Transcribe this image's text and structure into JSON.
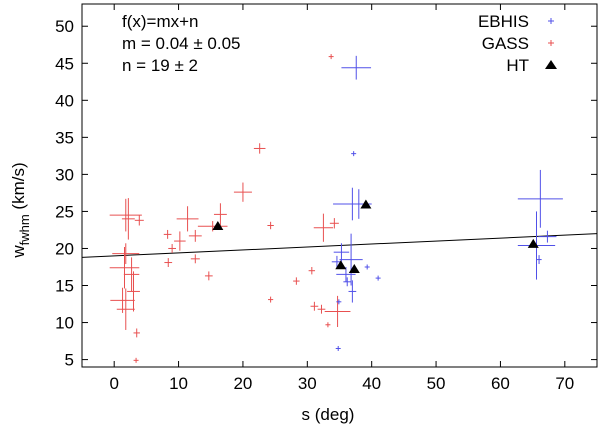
{
  "chart_data": {
    "type": "scatter",
    "xlabel": "s (deg)",
    "ylabel": {
      "main": "w",
      "sub": "fwhm",
      "unit": " (km/s)"
    },
    "xlim": [
      -5,
      75
    ],
    "ylim": [
      4,
      53
    ],
    "xticks": [
      0,
      10,
      20,
      30,
      40,
      50,
      60,
      70
    ],
    "yticks": [
      5,
      10,
      15,
      20,
      25,
      30,
      35,
      40,
      45,
      50
    ],
    "annotations": [
      "f(x)=mx+n",
      "m = 0.04 ± 0.05",
      "n = 19 ± 2"
    ],
    "fit_line": {
      "m": 0.04,
      "n": 19
    },
    "legend": [
      {
        "label": "EBHIS",
        "series": "EBHIS"
      },
      {
        "label": "GASS",
        "series": "GASS"
      },
      {
        "label": "HT",
        "series": "HT"
      }
    ],
    "colors": {
      "EBHIS": "#5050e8",
      "GASS": "#e85050",
      "HT": "#000000",
      "fit": "#000000",
      "frame": "#000000"
    },
    "series": [
      {
        "name": "EBHIS",
        "marker": "cross",
        "points": [
          {
            "x": 37.6,
            "y": 44.4,
            "xerr": 2.3,
            "yerr": 1.6
          },
          {
            "x": 37.2,
            "y": 32.8,
            "xerr": 0.3,
            "yerr": 0.3
          },
          {
            "x": 37.0,
            "y": 26.0,
            "xerr": 3.0,
            "yerr": 2.2
          },
          {
            "x": 38.0,
            "y": 26.0,
            "xerr": 1.5,
            "yerr": 2.0
          },
          {
            "x": 36.8,
            "y": 18.5,
            "xerr": 1.8,
            "yerr": 3.5
          },
          {
            "x": 36.0,
            "y": 16.5,
            "xerr": 1.5,
            "yerr": 1.0
          },
          {
            "x": 35.3,
            "y": 19.5,
            "xerr": 1.2,
            "yerr": 1.2
          },
          {
            "x": 34.6,
            "y": 18.2,
            "xerr": 0.8,
            "yerr": 0.8
          },
          {
            "x": 37.0,
            "y": 14.2,
            "xerr": 0.6,
            "yerr": 1.5
          },
          {
            "x": 36.2,
            "y": 15.5,
            "xerr": 0.6,
            "yerr": 0.6
          },
          {
            "x": 34.9,
            "y": 12.8,
            "xerr": 0.3,
            "yerr": 0.3
          },
          {
            "x": 39.3,
            "y": 17.5,
            "xerr": 0.3,
            "yerr": 0.3
          },
          {
            "x": 41.0,
            "y": 16.0,
            "xerr": 0.3,
            "yerr": 0.3
          },
          {
            "x": 34.8,
            "y": 6.5,
            "xerr": 0.2,
            "yerr": 0.2
          },
          {
            "x": 66.2,
            "y": 26.7,
            "xerr": 3.5,
            "yerr": 3.9
          },
          {
            "x": 65.6,
            "y": 20.4,
            "xerr": 2.9,
            "yerr": 4.6
          },
          {
            "x": 67.3,
            "y": 21.6,
            "xerr": 1.4,
            "yerr": 0.8
          },
          {
            "x": 66.0,
            "y": 18.5,
            "xerr": 0.4,
            "yerr": 0.6
          }
        ]
      },
      {
        "name": "GASS",
        "marker": "cross",
        "points": [
          {
            "x": 33.7,
            "y": 45.9,
            "xerr": 0.3,
            "yerr": 0.3
          },
          {
            "x": 22.6,
            "y": 33.5,
            "xerr": 0.9,
            "yerr": 0.7
          },
          {
            "x": 20.0,
            "y": 27.6,
            "xerr": 1.4,
            "yerr": 1.3
          },
          {
            "x": 16.5,
            "y": 24.6,
            "xerr": 1.0,
            "yerr": 1.5
          },
          {
            "x": 11.4,
            "y": 24.0,
            "xerr": 1.7,
            "yerr": 1.7
          },
          {
            "x": 1.8,
            "y": 24.5,
            "xerr": 2.5,
            "yerr": 2.2
          },
          {
            "x": 2.2,
            "y": 24.0,
            "xerr": 1.0,
            "yerr": 2.8
          },
          {
            "x": 3.9,
            "y": 23.8,
            "xerr": 0.7,
            "yerr": 0.7
          },
          {
            "x": 15.3,
            "y": 23.0,
            "xerr": 2.3,
            "yerr": 0.7
          },
          {
            "x": 24.3,
            "y": 23.1,
            "xerr": 0.5,
            "yerr": 0.5
          },
          {
            "x": 12.6,
            "y": 21.7,
            "xerr": 1.0,
            "yerr": 0.8
          },
          {
            "x": 8.3,
            "y": 21.9,
            "xerr": 0.6,
            "yerr": 0.6
          },
          {
            "x": 10.2,
            "y": 21.0,
            "xerr": 0.9,
            "yerr": 1.3
          },
          {
            "x": 9.0,
            "y": 20.0,
            "xerr": 0.6,
            "yerr": 0.6
          },
          {
            "x": 1.8,
            "y": 19.3,
            "xerr": 2.1,
            "yerr": 1.4
          },
          {
            "x": 1.6,
            "y": 17.4,
            "xerr": 2.3,
            "yerr": 2.8
          },
          {
            "x": 2.7,
            "y": 16.5,
            "xerr": 1.2,
            "yerr": 2.3
          },
          {
            "x": 3.0,
            "y": 14.2,
            "xerr": 1.0,
            "yerr": 2.7
          },
          {
            "x": 1.3,
            "y": 13.0,
            "xerr": 1.9,
            "yerr": 1.7
          },
          {
            "x": 1.8,
            "y": 11.8,
            "xerr": 1.4,
            "yerr": 2.8
          },
          {
            "x": 3.5,
            "y": 8.6,
            "xerr": 0.5,
            "yerr": 0.6
          },
          {
            "x": 3.4,
            "y": 4.9,
            "xerr": 0.3,
            "yerr": 0.3
          },
          {
            "x": 12.6,
            "y": 18.6,
            "xerr": 0.7,
            "yerr": 0.6
          },
          {
            "x": 8.4,
            "y": 18.1,
            "xerr": 0.6,
            "yerr": 0.6
          },
          {
            "x": 14.7,
            "y": 16.3,
            "xerr": 0.6,
            "yerr": 0.6
          },
          {
            "x": 24.3,
            "y": 13.1,
            "xerr": 0.4,
            "yerr": 0.4
          },
          {
            "x": 28.3,
            "y": 15.6,
            "xerr": 0.5,
            "yerr": 0.5
          },
          {
            "x": 30.7,
            "y": 17.0,
            "xerr": 0.5,
            "yerr": 0.5
          },
          {
            "x": 32.5,
            "y": 22.8,
            "xerr": 1.5,
            "yerr": 1.9
          },
          {
            "x": 34.2,
            "y": 23.4,
            "xerr": 0.7,
            "yerr": 0.7
          },
          {
            "x": 31.1,
            "y": 12.2,
            "xerr": 0.6,
            "yerr": 0.6
          },
          {
            "x": 32.2,
            "y": 11.8,
            "xerr": 0.6,
            "yerr": 0.6
          },
          {
            "x": 34.7,
            "y": 11.5,
            "xerr": 2.0,
            "yerr": 2.1
          },
          {
            "x": 33.2,
            "y": 9.7,
            "xerr": 0.3,
            "yerr": 0.3
          }
        ]
      },
      {
        "name": "HT",
        "marker": "triangle",
        "points": [
          {
            "x": 16.1,
            "y": 22.9
          },
          {
            "x": 39.1,
            "y": 25.8
          },
          {
            "x": 35.2,
            "y": 17.6
          },
          {
            "x": 37.3,
            "y": 17.1
          },
          {
            "x": 65.1,
            "y": 20.5
          }
        ]
      }
    ]
  }
}
